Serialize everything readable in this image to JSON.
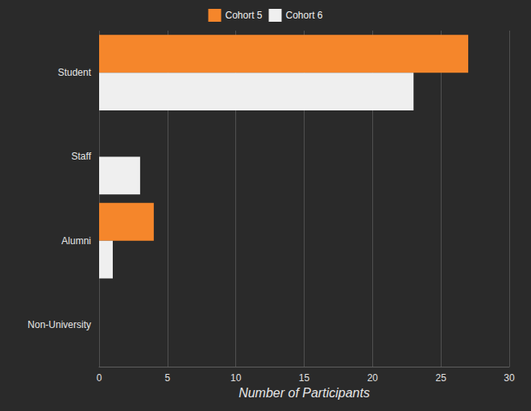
{
  "chart_data": {
    "type": "bar",
    "orientation": "horizontal",
    "x_label": "Number of Participants",
    "categories": [
      "Student",
      "Staff",
      "Alumni",
      "Non-University"
    ],
    "series": [
      {
        "name": "Cohort 5",
        "color": "#f5862b",
        "values": [
          27,
          0,
          4,
          0
        ]
      },
      {
        "name": "Cohort 6",
        "color": "#efefef",
        "values": [
          23,
          3,
          1,
          0
        ]
      }
    ],
    "xlim": [
      0,
      30
    ],
    "xticks": [
      0,
      5,
      10,
      15,
      20,
      25,
      30
    ],
    "grid": true,
    "legend": "top"
  }
}
